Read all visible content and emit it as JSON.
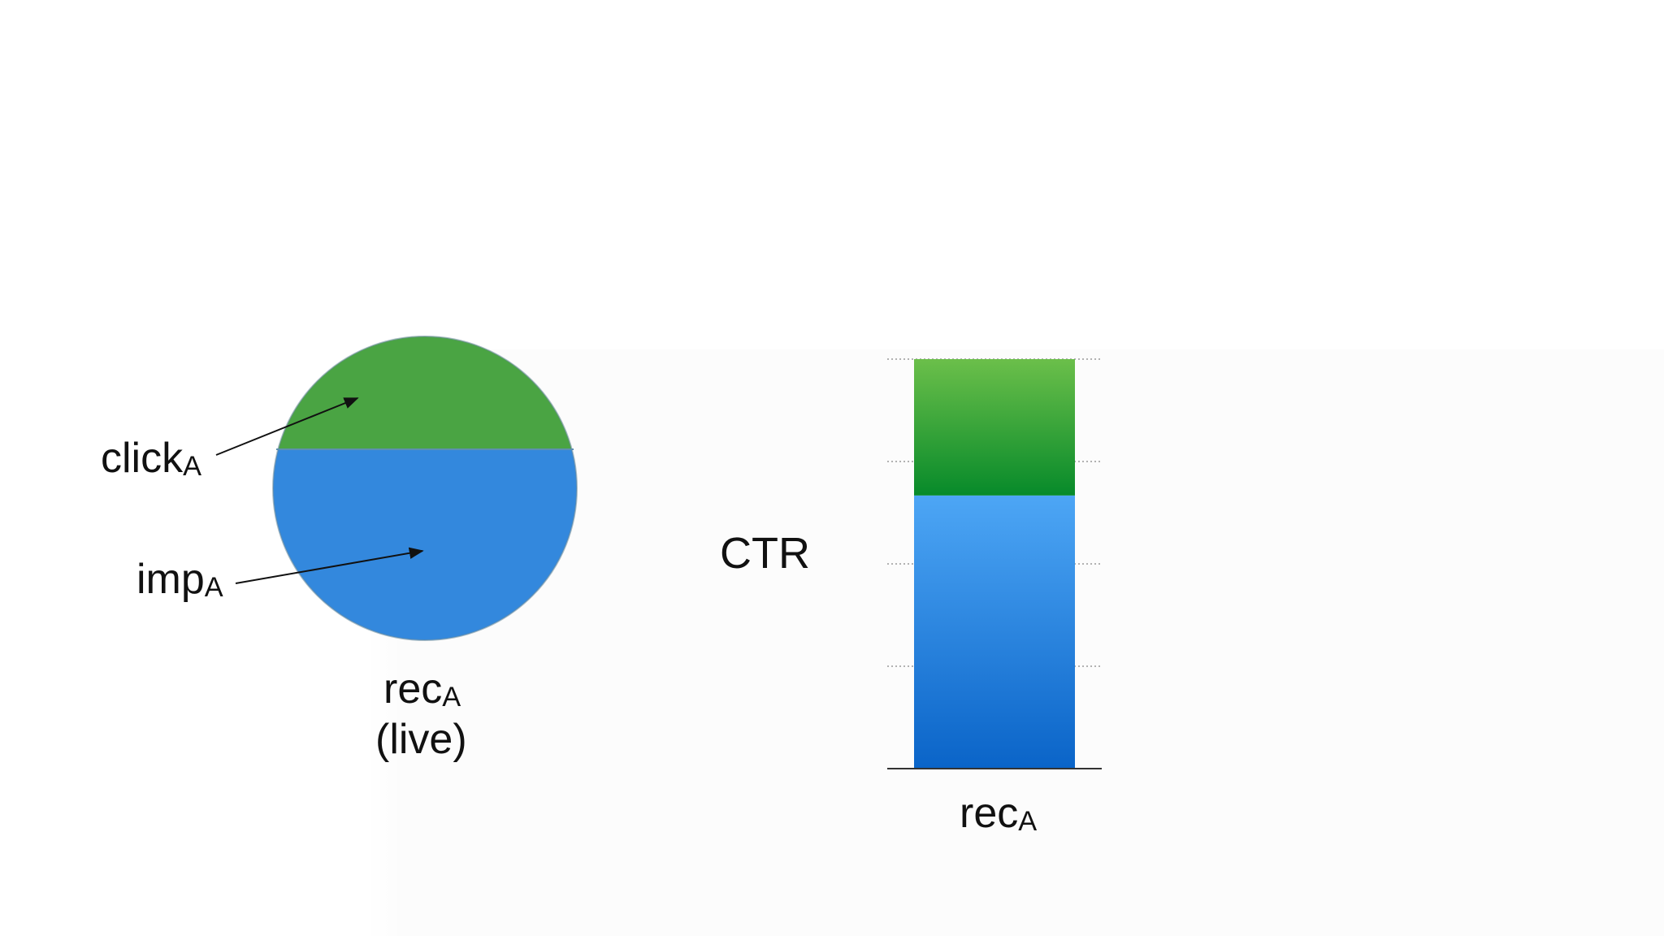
{
  "pie": {
    "click_label": "click",
    "click_subscript": "A",
    "imp_label": "imp",
    "imp_subscript": "A",
    "rec_label": "rec",
    "rec_subscript": "A",
    "live_label": "(live)",
    "click_color": "#4aa443",
    "imp_color": "#3388dd"
  },
  "bar": {
    "ylabel": "CTR",
    "xlabel": "rec",
    "xlabel_subscript": "A",
    "segments": [
      {
        "name": "imp",
        "fraction": 0.667,
        "color_top": "#4da6f5",
        "color_bottom": "#0a64c8"
      },
      {
        "name": "click",
        "fraction": 0.333,
        "color_top": "#6bbf4a",
        "color_bottom": "#078a2a"
      }
    ],
    "grid_lines": 4
  }
}
